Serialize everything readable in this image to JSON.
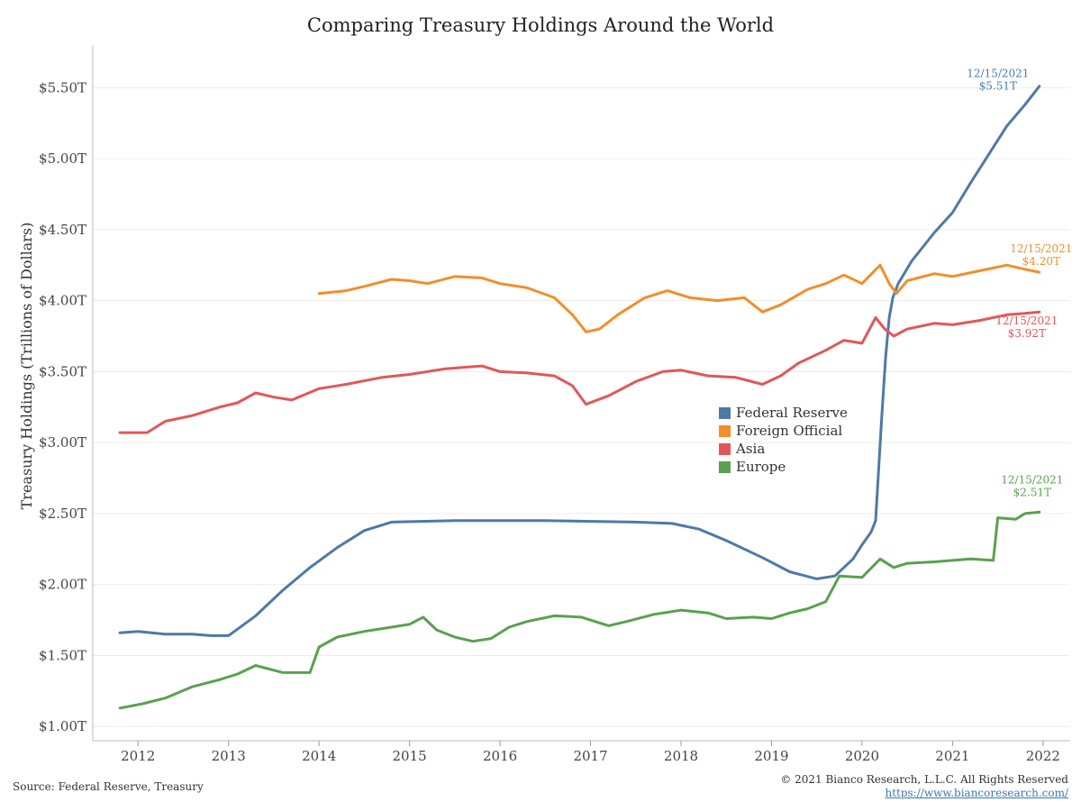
{
  "title": "Comparing Treasury Holdings Around the World",
  "footer": {
    "source": "Source: Federal Reserve, Treasury",
    "copyright": "© 2021 Bianco Research, L.L.C. All Rights Reserved",
    "url": "https://www.biancoresearch.com/"
  },
  "legend": {
    "items": [
      {
        "label": "Federal Reserve",
        "color": "#4e79a7"
      },
      {
        "label": "Foreign Official",
        "color": "#f28e2b"
      },
      {
        "label": "Asia",
        "color": "#e15759"
      },
      {
        "label": "Europe",
        "color": "#59a14f"
      }
    ]
  },
  "chart_data": {
    "type": "line",
    "title": "Comparing Treasury Holdings Around the World",
    "xlabel": "",
    "ylabel": "Treasury Holdings (Trillions of Dollars)",
    "xlim": [
      2011.5,
      2022.3
    ],
    "ylim": [
      0.9,
      5.8
    ],
    "x_ticks": [
      2012,
      2013,
      2014,
      2015,
      2016,
      2017,
      2018,
      2019,
      2020,
      2021,
      2022
    ],
    "y_ticks": [
      1.0,
      1.5,
      2.0,
      2.5,
      3.0,
      3.5,
      4.0,
      4.5,
      5.0,
      5.5
    ],
    "y_tick_labels": [
      "$1.00T",
      "$1.50T",
      "$2.00T",
      "$2.50T",
      "$3.00T",
      "$3.50T",
      "$4.00T",
      "$4.50T",
      "$5.00T",
      "$5.50T"
    ],
    "grid": "horizontal",
    "legend_position": "center-right",
    "series": [
      {
        "name": "Federal Reserve",
        "color": "#4e79a7",
        "x": [
          2011.8,
          2012.0,
          2012.3,
          2012.6,
          2012.8,
          2013.0,
          2013.3,
          2013.6,
          2013.9,
          2014.2,
          2014.5,
          2014.8,
          2015.5,
          2016.5,
          2017.5,
          2017.9,
          2018.2,
          2018.5,
          2018.9,
          2019.2,
          2019.5,
          2019.7,
          2019.9,
          2020.0,
          2020.1,
          2020.15,
          2020.22,
          2020.26,
          2020.3,
          2020.34,
          2020.4,
          2020.55,
          2020.8,
          2021.0,
          2021.2,
          2021.4,
          2021.6,
          2021.8,
          2021.96
        ],
        "y": [
          1.66,
          1.67,
          1.65,
          1.65,
          1.64,
          1.64,
          1.78,
          1.96,
          2.12,
          2.26,
          2.38,
          2.44,
          2.45,
          2.45,
          2.44,
          2.43,
          2.39,
          2.31,
          2.19,
          2.09,
          2.04,
          2.06,
          2.18,
          2.28,
          2.37,
          2.45,
          3.2,
          3.6,
          3.88,
          4.02,
          4.12,
          4.28,
          4.48,
          4.62,
          4.83,
          5.03,
          5.23,
          5.38,
          5.51
        ]
      },
      {
        "name": "Foreign Official",
        "color": "#f28e2b",
        "x": [
          2014.0,
          2014.3,
          2014.5,
          2014.8,
          2015.0,
          2015.2,
          2015.5,
          2015.8,
          2016.0,
          2016.3,
          2016.6,
          2016.8,
          2016.95,
          2017.1,
          2017.3,
          2017.6,
          2017.85,
          2018.1,
          2018.4,
          2018.7,
          2018.9,
          2019.1,
          2019.4,
          2019.6,
          2019.8,
          2020.0,
          2020.2,
          2020.3,
          2020.38,
          2020.5,
          2020.8,
          2021.0,
          2021.3,
          2021.6,
          2021.8,
          2021.96
        ],
        "y": [
          4.05,
          4.07,
          4.1,
          4.15,
          4.14,
          4.12,
          4.17,
          4.16,
          4.12,
          4.09,
          4.02,
          3.9,
          3.78,
          3.8,
          3.9,
          4.02,
          4.07,
          4.02,
          4.0,
          4.02,
          3.92,
          3.97,
          4.08,
          4.12,
          4.18,
          4.12,
          4.25,
          4.12,
          4.05,
          4.14,
          4.19,
          4.17,
          4.21,
          4.25,
          4.22,
          4.2
        ]
      },
      {
        "name": "Asia",
        "color": "#e15759",
        "x": [
          2011.8,
          2012.1,
          2012.3,
          2012.6,
          2012.9,
          2013.1,
          2013.3,
          2013.5,
          2013.7,
          2014.0,
          2014.3,
          2014.7,
          2015.0,
          2015.4,
          2015.8,
          2016.0,
          2016.3,
          2016.6,
          2016.8,
          2016.95,
          2017.2,
          2017.5,
          2017.8,
          2018.0,
          2018.3,
          2018.6,
          2018.9,
          2019.1,
          2019.3,
          2019.6,
          2019.8,
          2020.0,
          2020.15,
          2020.25,
          2020.35,
          2020.5,
          2020.8,
          2021.0,
          2021.3,
          2021.6,
          2021.8,
          2021.96
        ],
        "y": [
          3.07,
          3.07,
          3.15,
          3.19,
          3.25,
          3.28,
          3.35,
          3.32,
          3.3,
          3.38,
          3.41,
          3.46,
          3.48,
          3.52,
          3.54,
          3.5,
          3.49,
          3.47,
          3.4,
          3.27,
          3.33,
          3.43,
          3.5,
          3.51,
          3.47,
          3.46,
          3.41,
          3.47,
          3.56,
          3.65,
          3.72,
          3.7,
          3.88,
          3.8,
          3.75,
          3.8,
          3.84,
          3.83,
          3.86,
          3.9,
          3.91,
          3.92
        ]
      },
      {
        "name": "Europe",
        "color": "#59a14f",
        "x": [
          2011.8,
          2012.05,
          2012.3,
          2012.6,
          2012.9,
          2013.1,
          2013.3,
          2013.6,
          2013.9,
          2014.0,
          2014.2,
          2014.5,
          2014.8,
          2015.0,
          2015.15,
          2015.3,
          2015.5,
          2015.7,
          2015.9,
          2016.1,
          2016.3,
          2016.6,
          2016.9,
          2017.2,
          2017.4,
          2017.7,
          2018.0,
          2018.3,
          2018.5,
          2018.8,
          2019.0,
          2019.2,
          2019.4,
          2019.6,
          2019.75,
          2020.0,
          2020.2,
          2020.35,
          2020.5,
          2020.8,
          2021.0,
          2021.2,
          2021.45,
          2021.5,
          2021.7,
          2021.8,
          2021.96
        ],
        "y": [
          1.13,
          1.16,
          1.2,
          1.28,
          1.33,
          1.37,
          1.43,
          1.38,
          1.38,
          1.56,
          1.63,
          1.67,
          1.7,
          1.72,
          1.77,
          1.68,
          1.63,
          1.6,
          1.62,
          1.7,
          1.74,
          1.78,
          1.77,
          1.71,
          1.74,
          1.79,
          1.82,
          1.8,
          1.76,
          1.77,
          1.76,
          1.8,
          1.83,
          1.88,
          2.06,
          2.05,
          2.18,
          2.12,
          2.15,
          2.16,
          2.17,
          2.18,
          2.17,
          2.47,
          2.46,
          2.5,
          2.51
        ]
      }
    ],
    "annotations": [
      {
        "series": "Federal Reserve",
        "date": "12/15/2021",
        "value": "$5.51T"
      },
      {
        "series": "Foreign Official",
        "date": "12/15/2021",
        "value": "$4.20T"
      },
      {
        "series": "Asia",
        "date": "12/15/2021",
        "value": "$3.92T"
      },
      {
        "series": "Europe",
        "date": "12/15/2021",
        "value": "$2.51T"
      }
    ]
  }
}
